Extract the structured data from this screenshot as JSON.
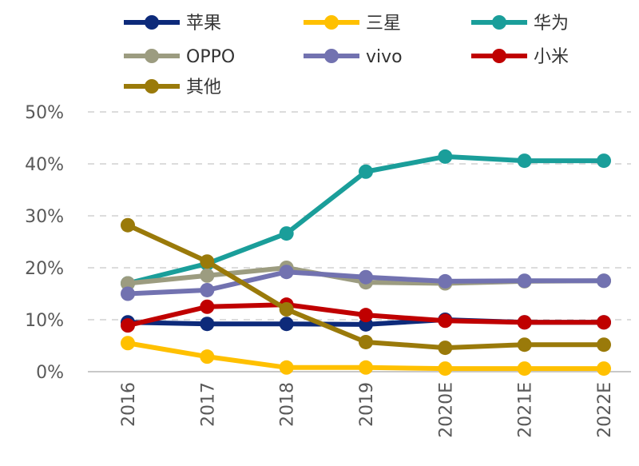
{
  "chart_data": {
    "type": "line",
    "title": "",
    "xlabel": "",
    "ylabel": "",
    "categories": [
      "2016",
      "2017",
      "2018",
      "2019",
      "2020E",
      "2021E",
      "2022E"
    ],
    "ylim": [
      0,
      50
    ],
    "yticks": [
      "0%",
      "10%",
      "20%",
      "30%",
      "40%",
      "50%"
    ],
    "grid": "horizontal dashed",
    "legend_position": "top",
    "series": [
      {
        "name": "苹果",
        "color": "#0d2a7a",
        "values": [
          9.5,
          9.2,
          9.2,
          9.1,
          10.0,
          9.5,
          9.5
        ]
      },
      {
        "name": "三星",
        "color": "#ffc000",
        "values": [
          5.5,
          2.9,
          0.8,
          0.8,
          0.6,
          0.6,
          0.6
        ]
      },
      {
        "name": "华为",
        "color": "#1a9e9a",
        "values": [
          17.0,
          20.8,
          26.6,
          38.5,
          41.4,
          40.6,
          40.6
        ]
      },
      {
        "name": "OPPO",
        "color": "#9c9c80",
        "values": [
          17.0,
          18.5,
          20.0,
          17.2,
          17.0,
          17.4,
          17.5
        ]
      },
      {
        "name": "vivo",
        "color": "#7272b0",
        "values": [
          15.0,
          15.7,
          19.2,
          18.2,
          17.4,
          17.5,
          17.5
        ]
      },
      {
        "name": "小米",
        "color": "#c00000",
        "values": [
          8.9,
          12.5,
          12.9,
          10.9,
          9.8,
          9.5,
          9.5
        ]
      },
      {
        "name": "其他",
        "color": "#9a7a0a",
        "values": [
          28.2,
          21.2,
          12.0,
          5.7,
          4.6,
          5.2,
          5.2
        ]
      }
    ]
  }
}
